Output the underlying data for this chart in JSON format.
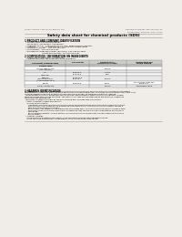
{
  "bg_color": "#f0ede8",
  "header_top_left": "Product Name: Lithium Ion Battery Cell",
  "header_top_right": "Document number: 980-049-000-10\nEstablished / Revision: Dec.7.2010",
  "title": "Safety data sheet for chemical products (SDS)",
  "section1_title": "1 PRODUCT AND COMPANY IDENTIFICATION",
  "section1_lines": [
    "  • Product name: Lithium Ion Battery Cell",
    "  • Product code: Cylindrical-type cell",
    "    SNF18650U, SNF18650U, SNF18650A",
    "  • Company name:    Sanyo Electric Co., Ltd.  Mobile Energy Company",
    "  • Address:           2-1-1  Kamionkami, Sumoto-City, Hyogo, Japan",
    "  • Telephone number:   +81-799-26-4111",
    "  • Fax number:   +81-799-26-4121",
    "  • Emergency telephone number (daytime): +81-799-26-3962",
    "                               (Night and holiday): +81-799-26-2101"
  ],
  "section2_title": "2 COMPOSITION / INFORMATION ON INGREDIENTS",
  "section2_lines": [
    "  • Substance or preparation: Preparation",
    "  • Information about the chemical nature of product:"
  ],
  "table_headers": [
    "Component /chemical name",
    "CAS number",
    "Concentration /\nConcentration range",
    "Classification and\nhazard labeling"
  ],
  "table_subheader": "Several name",
  "table_rows": [
    [
      "Lithium cobalt oxide\n(LiMnCoO₂(O₂))",
      "",
      "30-40%",
      ""
    ],
    [
      "Iron",
      "7439-89-6",
      "15-25%",
      ""
    ],
    [
      "Aluminum",
      "7429-90-5",
      "2-8%",
      ""
    ],
    [
      "Graphite\n(Meso graphite-1)\n(Artificial graphite-1)",
      "17799-42-5\n7782-44-7",
      "10-20%",
      ""
    ],
    [
      "Copper",
      "7440-50-8",
      "5-15%",
      "Sensitization of the skin\ngroup 9s.2"
    ],
    [
      "Organic electrolyte",
      "",
      "10-20%",
      "Inflammable liquid"
    ]
  ],
  "section3_title": "3 HAZARDS IDENTIFICATION",
  "section3_lines": [
    "For the battery cell, chemical materials are stored in a hermetically sealed metal case, designed to withstand",
    "temperatures change by pressure-force-construction during normal use. As a result, during normal use, there is no",
    "physical danger of ignition or explosion and there is no danger of hazardous materials leakage.",
    "  When exposed to a fire, added mechanical shocks, decompressed, when electrolyte suddenly release,",
    "the gas release vent can be operated. The battery cell case will be breached at fire patterns, hazardous",
    "materials may be released.",
    "  Moreover, if heated strongly by the surrounding fire, acid gas may be emitted."
  ],
  "bullet1": "  • Most important hazard and effects:",
  "human_title": "    Human health effects:",
  "human_lines": [
    "      Inhalation: The release of the electrolyte has an anesthesia action and stimulates in respiratory tract.",
    "      Skin contact: The release of the electrolyte stimulates a skin. The electrolyte skin contact causes a",
    "      sore and stimulation on the skin.",
    "      Eye contact: The release of the electrolyte stimulates eyes. The electrolyte eye contact causes a sore",
    "      and stimulation on the eye. Especially, a substance that causes a strong inflammation of the eye is",
    "      contained.",
    "      Environmental effects: Since a battery cell remains in the environment, do not throw out it into the",
    "      environment."
  ],
  "bullet2": "  • Specific hazards:",
  "specific_lines": [
    "    If the electrolyte contacts with water, it will generate detrimental hydrogen fluoride.",
    "    Since the used electrolyte is inflammable liquid, do not bring close to fire."
  ]
}
